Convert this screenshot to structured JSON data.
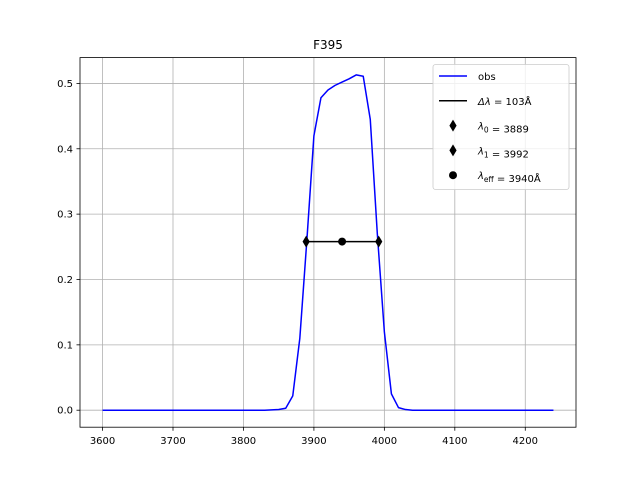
{
  "chart_data": {
    "type": "line",
    "title": "F395",
    "xlabel": "",
    "ylabel": "",
    "xlim": [
      3568,
      4272
    ],
    "ylim": [
      -0.026,
      0.5395
    ],
    "xticks": [
      3600,
      3700,
      3800,
      3900,
      4000,
      4100,
      4200
    ],
    "xtick_labels": [
      "3600",
      "3700",
      "3800",
      "3900",
      "4000",
      "4100",
      "4200"
    ],
    "yticks": [
      0.0,
      0.1,
      0.2,
      0.3,
      0.4,
      0.5
    ],
    "ytick_labels": [
      "0.0",
      "0.1",
      "0.2",
      "0.3",
      "0.4",
      "0.5"
    ],
    "grid": true,
    "legend_position": "top-right",
    "series": [
      {
        "name": "obs",
        "kind": "line",
        "color": "#0000ff",
        "x": [
          3600,
          3700,
          3800,
          3830,
          3850,
          3860,
          3870,
          3880,
          3890,
          3900,
          3910,
          3920,
          3930,
          3940,
          3950,
          3960,
          3970,
          3980,
          3990,
          4000,
          4010,
          4020,
          4030,
          4040,
          4100,
          4200,
          4240
        ],
        "y": [
          0.0,
          0.0,
          0.0,
          0.0,
          0.001,
          0.003,
          0.022,
          0.11,
          0.26,
          0.42,
          0.478,
          0.49,
          0.497,
          0.502,
          0.507,
          0.513,
          0.511,
          0.445,
          0.27,
          0.12,
          0.025,
          0.004,
          0.001,
          0.0,
          0.0,
          0.0,
          0.0
        ]
      },
      {
        "name": "Δλ = 103Å",
        "kind": "line",
        "color": "#000000",
        "x": [
          3889,
          3992
        ],
        "y": [
          0.258,
          0.258
        ]
      },
      {
        "name": "λ₀ = 3889",
        "kind": "thin_diamond",
        "color": "#000000",
        "x": [
          3889
        ],
        "y": [
          0.258
        ]
      },
      {
        "name": "λ₁ = 3992",
        "kind": "thin_diamond",
        "color": "#000000",
        "x": [
          3992
        ],
        "y": [
          0.258
        ]
      },
      {
        "name": "λeff = 3940Å",
        "kind": "circle",
        "color": "#000000",
        "x": [
          3940
        ],
        "y": [
          0.258
        ]
      }
    ]
  },
  "legend": {
    "items": [
      {
        "kind": "line",
        "color": "#0000ff",
        "parts": [
          {
            "t": "obs"
          }
        ]
      },
      {
        "kind": "line",
        "color": "#000000",
        "parts": [
          {
            "t": "Δλ",
            "i": true
          },
          {
            "t": " = 103Å"
          }
        ]
      },
      {
        "kind": "thin_diamond",
        "color": "#000000",
        "parts": [
          {
            "t": "λ",
            "i": true
          },
          {
            "t": "0",
            "sub": true
          },
          {
            "t": " = 3889"
          }
        ]
      },
      {
        "kind": "thin_diamond",
        "color": "#000000",
        "parts": [
          {
            "t": "λ",
            "i": true
          },
          {
            "t": "1",
            "sub": true
          },
          {
            "t": " = 3992"
          }
        ]
      },
      {
        "kind": "circle",
        "color": "#000000",
        "parts": [
          {
            "t": "λ",
            "i": true
          },
          {
            "t": "eff",
            "sub": true
          },
          {
            "t": " = 3940Å"
          }
        ]
      }
    ]
  }
}
